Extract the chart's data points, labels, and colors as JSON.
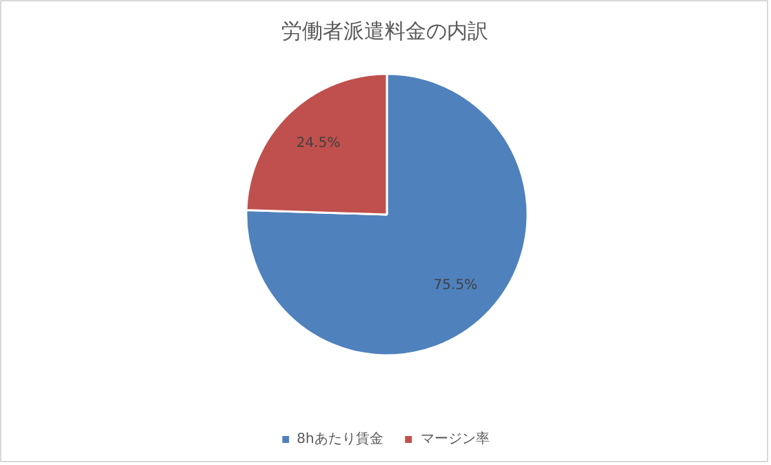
{
  "chart_data": {
    "type": "pie",
    "title": "労働者派遣料金の内訳",
    "categories": [
      "8hあたり賃金",
      "マージン率"
    ],
    "values": [
      75.5,
      24.5
    ],
    "colors": [
      "#4f81bd",
      "#c0504d"
    ],
    "value_labels": [
      "75.5%",
      "24.5%"
    ],
    "legend": "bottom"
  }
}
